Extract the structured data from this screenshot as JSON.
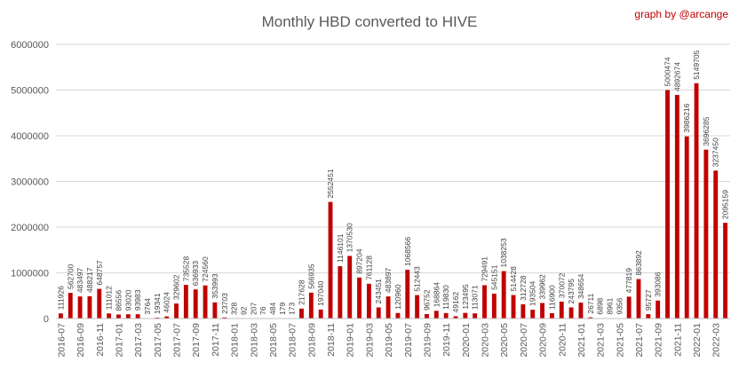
{
  "chart_data": {
    "type": "bar",
    "title": "Monthly HBD converted to  HIVE",
    "credit": "graph by @arcange",
    "color": "#c00000",
    "ylim": [
      0,
      6000000
    ],
    "yticks": [
      "0",
      "1000000",
      "2000000",
      "3000000",
      "4000000",
      "5000000",
      "6000000"
    ],
    "grid": true,
    "categories": [
      "2016-07",
      "2016-08",
      "2016-09",
      "2016-10",
      "2016-11",
      "2016-12",
      "2017-01",
      "2017-02",
      "2017-03",
      "2017-04",
      "2017-05",
      "2017-06",
      "2017-07",
      "2017-08",
      "2017-09",
      "2017-10",
      "2017-11",
      "2017-12",
      "2018-01",
      "2018-02",
      "2018-03",
      "2018-04",
      "2018-05",
      "2018-06",
      "2018-07",
      "2018-08",
      "2018-09",
      "2018-10",
      "2018-11",
      "2018-12",
      "2019-01",
      "2019-02",
      "2019-03",
      "2019-04",
      "2019-05",
      "2019-06",
      "2019-07",
      "2019-08",
      "2019-09",
      "2019-10",
      "2019-11",
      "2019-12",
      "2020-01",
      "2020-02",
      "2020-03",
      "2020-04",
      "2020-05",
      "2020-06",
      "2020-07",
      "2020-08",
      "2020-09",
      "2020-10",
      "2020-11",
      "2020-12",
      "2021-01",
      "2021-02",
      "2021-03",
      "2021-04",
      "2021-05",
      "2021-06",
      "2021-07",
      "2021-08",
      "2021-09",
      "2021-10",
      "2021-11",
      "2021-12",
      "2022-01",
      "2022-02",
      "2022-03",
      "2022-04"
    ],
    "xtick_labels": [
      "2016-07",
      "2016-09",
      "2016-11",
      "2017-01",
      "2017-03",
      "2017-05",
      "2017-07",
      "2017-09",
      "2017-11",
      "2018-01",
      "2018-03",
      "2018-05",
      "2018-07",
      "2018-09",
      "2018-11",
      "2019-01",
      "2019-03",
      "2019-05",
      "2019-07",
      "2019-09",
      "2019-11",
      "2020-01",
      "2020-03",
      "2020-05",
      "2020-07",
      "2020-09",
      "2020-11",
      "2021-01",
      "2021-03",
      "2021-05",
      "2021-07",
      "2021-09",
      "2021-11",
      "2022-01",
      "2022-03"
    ],
    "values": [
      111926,
      562700,
      483497,
      488217,
      648757,
      111012,
      86556,
      93020,
      93983,
      3764,
      19341,
      46024,
      329602,
      735528,
      636933,
      724560,
      353993,
      23703,
      328,
      92,
      207,
      76,
      484,
      179,
      173,
      217628,
      566935,
      197040,
      2552451,
      1146101,
      1370530,
      897204,
      761128,
      243451,
      483897,
      120960,
      1068566,
      512443,
      96752,
      168864,
      119830,
      49162,
      123495,
      113071,
      729491,
      545151,
      1038253,
      514428,
      312728,
      193504,
      339962,
      116900,
      370072,
      243795,
      348654,
      26711,
      6898,
      8961,
      9356,
      477819,
      863892,
      95727,
      393086,
      5000474,
      4892674,
      3986216,
      5149705,
      3696285,
      3237450,
      2095159
    ],
    "data_labels": [
      "111926",
      "562700",
      "483497",
      "488217",
      "648757",
      "111012",
      "86556",
      "93020",
      "93983",
      "3764",
      "19341",
      "46024",
      "329602",
      "735528",
      "636933",
      "724560",
      "353993",
      "23703",
      "328",
      "92",
      "207",
      "76",
      "484",
      "179",
      "173",
      "217628",
      "566935",
      "197040",
      "2552451",
      "1146101",
      "1370530",
      "897204",
      "761128",
      "243451",
      "483897",
      "120960",
      "1068566",
      "512443",
      "96752",
      "168864",
      "119830",
      "49162",
      "123495",
      "113071",
      "729491",
      "545151",
      "1038253",
      "514428",
      "312728",
      "193504",
      "339962",
      "116900",
      "370072",
      "243795",
      "348654",
      "26711",
      "6898",
      "8961",
      "9356",
      "477819",
      "863892",
      "95727",
      "393086",
      "5000474",
      "4892674",
      "3986216",
      "5149705",
      "3696285",
      "3237450",
      "2095159"
    ]
  }
}
